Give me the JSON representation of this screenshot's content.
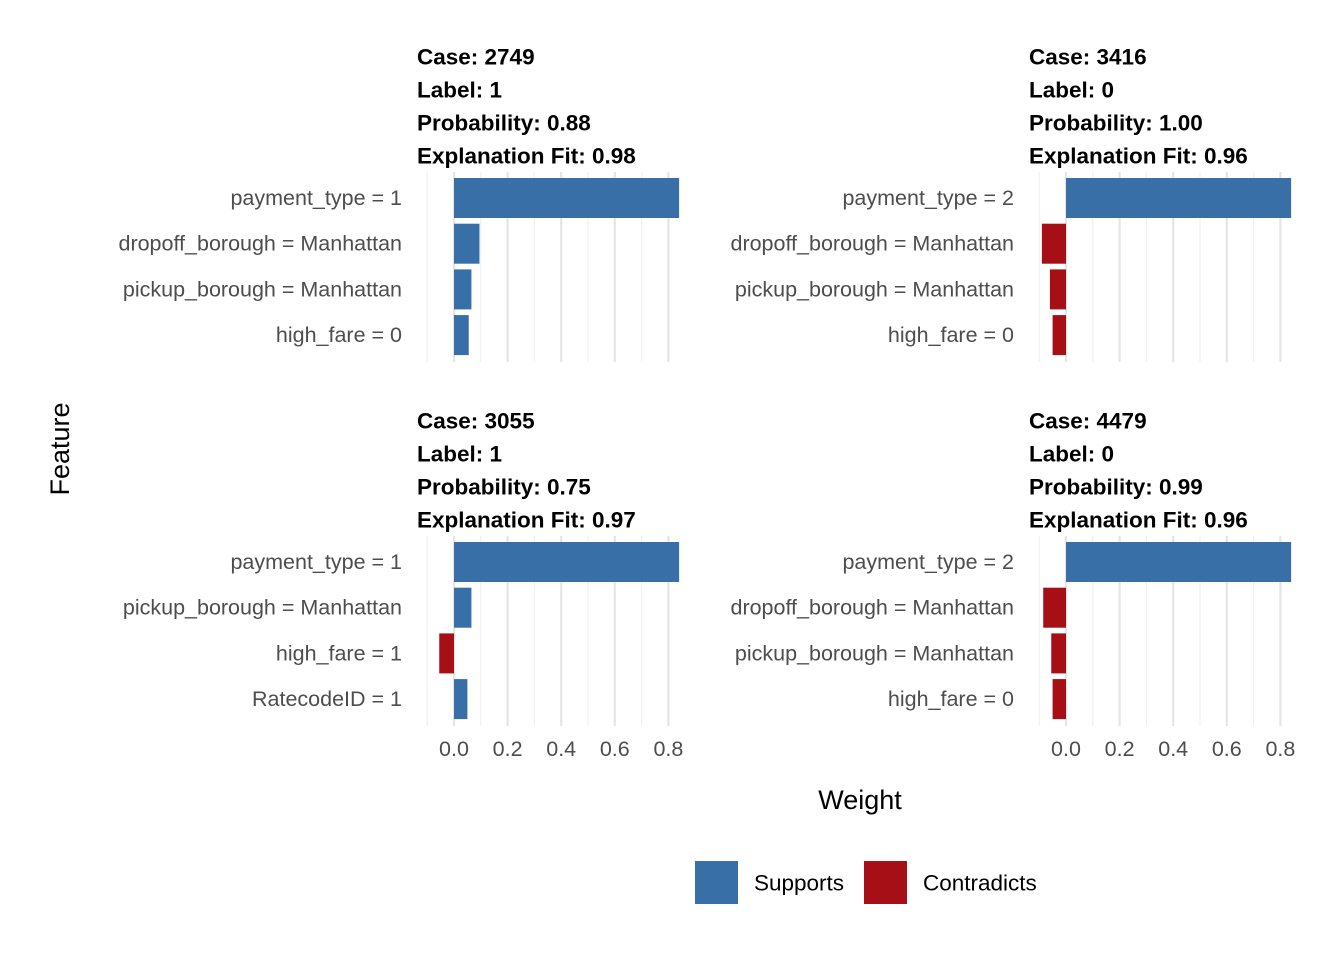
{
  "chart_data": {
    "type": "bar",
    "orientation": "horizontal",
    "facet_layout": "2x2",
    "xlabel": "Weight",
    "ylabel": "Feature",
    "xlim": [
      -0.1,
      0.84
    ],
    "x_ticks": [
      "0.0",
      "0.2",
      "0.4",
      "0.6",
      "0.8"
    ],
    "x_tick_values": [
      0.0,
      0.2,
      0.4,
      0.6,
      0.8
    ],
    "grid": true,
    "legend": {
      "position": "bottom",
      "items": [
        {
          "label": "Supports",
          "color": "#386fa7"
        },
        {
          "label": "Contradicts",
          "color": "#a50f15"
        }
      ]
    },
    "panels": [
      {
        "title_lines": [
          "Case: 2749",
          "Label: 1",
          "Probability: 0.88",
          "Explanation Fit: 0.98"
        ],
        "bars": [
          {
            "feature": "payment_type = 1",
            "weight": 0.84,
            "class": "Supports"
          },
          {
            "feature": "dropoff_borough = Manhattan",
            "weight": 0.095,
            "class": "Supports"
          },
          {
            "feature": "pickup_borough = Manhattan",
            "weight": 0.065,
            "class": "Supports"
          },
          {
            "feature": "high_fare = 0",
            "weight": 0.055,
            "class": "Supports"
          }
        ]
      },
      {
        "title_lines": [
          "Case: 3416",
          "Label: 0",
          "Probability: 1.00",
          "Explanation Fit: 0.96"
        ],
        "bars": [
          {
            "feature": "payment_type = 2",
            "weight": 0.84,
            "class": "Supports"
          },
          {
            "feature": "dropoff_borough = Manhattan",
            "weight": -0.09,
            "class": "Contradicts"
          },
          {
            "feature": "pickup_borough = Manhattan",
            "weight": -0.06,
            "class": "Contradicts"
          },
          {
            "feature": "high_fare = 0",
            "weight": -0.05,
            "class": "Contradicts"
          }
        ]
      },
      {
        "title_lines": [
          "Case: 3055",
          "Label: 1",
          "Probability: 0.75",
          "Explanation Fit: 0.97"
        ],
        "bars": [
          {
            "feature": "payment_type = 1",
            "weight": 0.84,
            "class": "Supports"
          },
          {
            "feature": "pickup_borough = Manhattan",
            "weight": 0.065,
            "class": "Supports"
          },
          {
            "feature": "high_fare = 1",
            "weight": -0.055,
            "class": "Contradicts"
          },
          {
            "feature": "RatecodeID = 1",
            "weight": 0.05,
            "class": "Supports"
          }
        ]
      },
      {
        "title_lines": [
          "Case: 4479",
          "Label: 0",
          "Probability: 0.99",
          "Explanation Fit: 0.96"
        ],
        "bars": [
          {
            "feature": "payment_type = 2",
            "weight": 0.84,
            "class": "Supports"
          },
          {
            "feature": "dropoff_borough = Manhattan",
            "weight": -0.085,
            "class": "Contradicts"
          },
          {
            "feature": "pickup_borough = Manhattan",
            "weight": -0.055,
            "class": "Contradicts"
          },
          {
            "feature": "high_fare = 0",
            "weight": -0.05,
            "class": "Contradicts"
          }
        ]
      }
    ]
  }
}
